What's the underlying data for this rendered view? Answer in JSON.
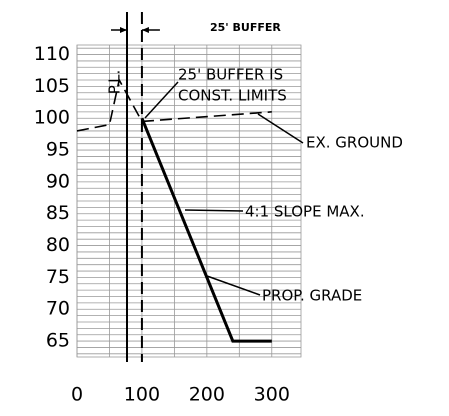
{
  "chart_data": {
    "type": "line",
    "xlim": [
      0,
      345
    ],
    "ylim": [
      62.5,
      111.5
    ],
    "xticks": [
      0,
      100,
      200,
      300
    ],
    "yticks": [
      65,
      70,
      75,
      80,
      85,
      90,
      95,
      100,
      105,
      110
    ],
    "xgrid": [
      0,
      50,
      100,
      150,
      200,
      250,
      300
    ],
    "ygrid": [
      63,
      64,
      65,
      66,
      67,
      68,
      69,
      70,
      71,
      72,
      73,
      74,
      75,
      76,
      77,
      78,
      79,
      80,
      81,
      82,
      83,
      84,
      85,
      86,
      87,
      88,
      89,
      90,
      91,
      92,
      93,
      94,
      95,
      96,
      97,
      98,
      99,
      100,
      101,
      102,
      103,
      104,
      105,
      106,
      107,
      108,
      109,
      110,
      111
    ],
    "grid": true,
    "series": [
      {
        "name": "EX. GROUND",
        "color": "#000000",
        "style": "dashed",
        "x": [
          0,
          50,
          65,
          100,
          300
        ],
        "values": [
          98,
          99,
          106,
          99.5,
          101
        ]
      },
      {
        "name": "PROP. GRADE",
        "color": "#000000",
        "style": "solid",
        "x": [
          100,
          240,
          300
        ],
        "values": [
          100,
          65,
          65
        ]
      }
    ],
    "vlines": [
      {
        "x": 77,
        "style": "solid",
        "label": "P.L."
      },
      {
        "x": 100,
        "style": "dashed"
      }
    ],
    "annotations": [
      "25' BUFFER",
      "25' BUFFER IS",
      "CONST. LIMITS",
      "4:1 SLOPE MAX."
    ]
  }
}
